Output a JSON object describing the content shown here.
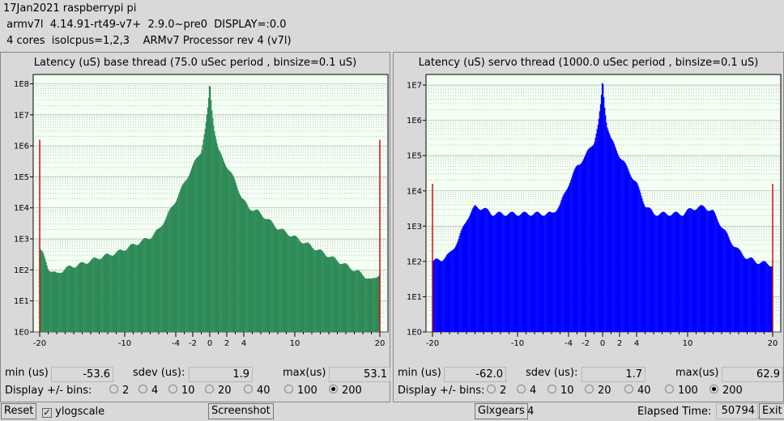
{
  "header": {
    "line1": "17Jan2021 raspberrypi pi",
    "line2": " armv7l  4.14.91-rt49-v7+  2.9.0~pre0  DISPLAY=:0.0",
    "line3": " 4 cores  isolcpus=1,2,3    ARMv7 Processor rev 4 (v7l)"
  },
  "colors": {
    "base": "#2e8b57",
    "servo": "#0000ff",
    "plot_bg": "#f4fff4",
    "grid": "#a0a0a0",
    "edge_line": "#cc0000"
  },
  "panels": [
    {
      "title": "Latency (uS) base thread (75.0 uSec period , binsize=0.1 uS)",
      "min_label": "min (us)",
      "min": "-53.6",
      "sdev_label": "sdev (us):",
      "sdev": "1.9",
      "max_label": "max(us)",
      "max": "53.1",
      "bins_label": "Display +/- bins:",
      "bins": [
        "2",
        "4",
        "10",
        "20",
        "40",
        "100",
        "200"
      ],
      "selected_bins": "200"
    },
    {
      "title": "Latency (uS) servo thread (1000.0 uSec period , binsize=0.1 uS)",
      "min_label": "min (us)",
      "min": "-62.0",
      "sdev_label": "sdev (us):",
      "sdev": "1.7",
      "max_label": "max(us)",
      "max": "62.9",
      "bins_label": "Display +/- bins:",
      "bins": [
        "2",
        "4",
        "10",
        "20",
        "40",
        "100",
        "200"
      ],
      "selected_bins": "200"
    }
  ],
  "chart_data": [
    {
      "type": "bar",
      "title": "Latency (uS) base thread (75.0 uSec period , binsize=0.1 uS)",
      "xlim": [
        -20,
        20
      ],
      "x_ticks": [
        -20,
        -10,
        -4,
        -2,
        0,
        2,
        4,
        10,
        20
      ],
      "y_scale": "log",
      "y_ticks": [
        "1E0",
        "1E1",
        "1E2",
        "1E3",
        "1E4",
        "1E5",
        "1E6",
        "1E7",
        "1E8"
      ],
      "ylim_log": [
        0,
        8.3
      ],
      "envelope": [
        [
          -20,
          2.7
        ],
        [
          -19.6,
          2.5
        ],
        [
          -19,
          2.05
        ],
        [
          -18,
          1.85
        ],
        [
          -17,
          2.05
        ],
        [
          -15,
          2.2
        ],
        [
          -13,
          2.4
        ],
        [
          -11,
          2.55
        ],
        [
          -9,
          2.8
        ],
        [
          -7,
          3.05
        ],
        [
          -6,
          3.3
        ],
        [
          -5,
          3.75
        ],
        [
          -4,
          4.25
        ],
        [
          -3,
          4.8
        ],
        [
          -2,
          5.35
        ],
        [
          -1,
          5.85
        ],
        [
          -0.5,
          6.6
        ],
        [
          -0.2,
          7.3
        ],
        [
          0,
          8.1
        ],
        [
          0.2,
          7.3
        ],
        [
          0.5,
          6.6
        ],
        [
          1,
          5.85
        ],
        [
          2,
          5.35
        ],
        [
          3,
          4.85
        ],
        [
          3.8,
          4.3
        ],
        [
          4.6,
          4.0
        ],
        [
          5.5,
          3.9
        ],
        [
          6.5,
          3.7
        ],
        [
          8,
          3.35
        ],
        [
          10,
          3.05
        ],
        [
          12,
          2.75
        ],
        [
          14,
          2.45
        ],
        [
          16,
          2.15
        ],
        [
          18,
          1.85
        ],
        [
          19,
          1.65
        ],
        [
          19.6,
          1.8
        ],
        [
          20,
          1.9
        ]
      ],
      "edge_spikes": [
        [
          -20,
          6.2
        ],
        [
          20,
          6.2
        ]
      ]
    },
    {
      "type": "bar",
      "title": "Latency (uS) servo thread (1000.0 uSec period , binsize=0.1 uS)",
      "xlim": [
        -20,
        20
      ],
      "x_ticks": [
        -20,
        -10,
        -4,
        -2,
        0,
        2,
        4,
        10,
        20
      ],
      "y_scale": "log",
      "y_ticks": [
        "1E0",
        "1E1",
        "1E2",
        "1E3",
        "1E4",
        "1E5",
        "1E6",
        "1E7"
      ],
      "ylim_log": [
        0,
        7.3
      ],
      "envelope": [
        [
          -20,
          2.0
        ],
        [
          -19,
          2.05
        ],
        [
          -18,
          2.2
        ],
        [
          -17,
          2.6
        ],
        [
          -16,
          3.2
        ],
        [
          -15,
          3.55
        ],
        [
          -14,
          3.5
        ],
        [
          -13,
          3.35
        ],
        [
          -12,
          3.35
        ],
        [
          -11,
          3.35
        ],
        [
          -10,
          3.35
        ],
        [
          -8,
          3.35
        ],
        [
          -6,
          3.35
        ],
        [
          -5,
          3.6
        ],
        [
          -4,
          4.2
        ],
        [
          -3,
          4.7
        ],
        [
          -2,
          5.0
        ],
        [
          -1,
          5.4
        ],
        [
          -0.5,
          5.9
        ],
        [
          -0.2,
          6.5
        ],
        [
          0,
          7.2
        ],
        [
          0.2,
          6.5
        ],
        [
          0.5,
          5.9
        ],
        [
          1,
          5.45
        ],
        [
          2,
          5.0
        ],
        [
          3,
          4.6
        ],
        [
          4,
          4.2
        ],
        [
          5,
          3.6
        ],
        [
          6,
          3.35
        ],
        [
          8,
          3.35
        ],
        [
          9.5,
          3.35
        ],
        [
          10.5,
          3.5
        ],
        [
          12,
          3.55
        ],
        [
          13,
          3.4
        ],
        [
          14,
          3.0
        ],
        [
          15,
          2.6
        ],
        [
          16,
          2.3
        ],
        [
          17,
          2.1
        ],
        [
          18,
          2.0
        ],
        [
          19,
          1.95
        ],
        [
          20,
          1.9
        ]
      ],
      "edge_spikes": [
        [
          -20,
          4.2
        ],
        [
          20,
          4.2
        ]
      ]
    }
  ],
  "footer": {
    "reset": "Reset",
    "ylogscale": "ylogscale",
    "ylogscale_checked": true,
    "screenshot": "Screenshot",
    "glxgears": "Glxgears",
    "glxgears_count": "4",
    "elapsed_label": "Elapsed Time:",
    "elapsed": "50794",
    "exit": "Exit"
  }
}
